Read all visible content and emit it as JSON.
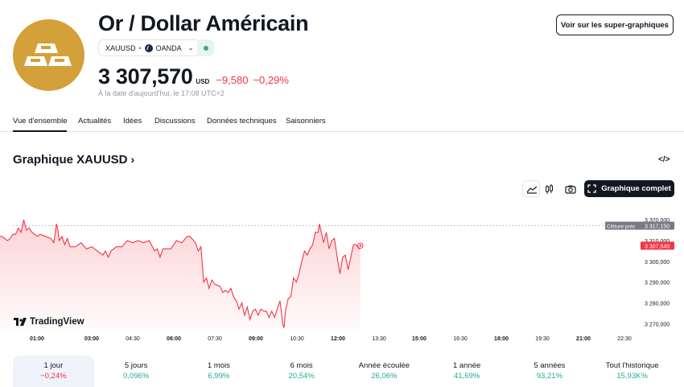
{
  "header": {
    "title": "Or / Dollar Américain",
    "symbol": "XAUUSD",
    "exchange": "OANDA",
    "price": "3 307,570",
    "currency": "USD",
    "change": "−9,580",
    "change_pct": "−0,29%",
    "date_text": "À la date d'aujourd'hui, le 17:08 UTC+2",
    "super_button": "Voir sur les super-graphiques",
    "logo_icon": "gold-bars-icon",
    "accent_color": "#d4a03a"
  },
  "tabs": [
    {
      "label": "Vue d'ensemble",
      "active": true
    },
    {
      "label": "Actualités",
      "active": false
    },
    {
      "label": "Idées",
      "active": false
    },
    {
      "label": "Discussions",
      "active": false
    },
    {
      "label": "Données techniques",
      "active": false
    },
    {
      "label": "Saisonniers",
      "active": false
    }
  ],
  "chart_section": {
    "title": "Graphique XAUUSD",
    "full_chart_button": "Graphique complet",
    "brand": "TradingView"
  },
  "chart_data": {
    "type": "area",
    "line_color": "#f23645",
    "x_ticks": [
      "01:00",
      "03:00",
      "04:30",
      "06:00",
      "07:30",
      "09:00",
      "10:30",
      "12:00",
      "13:30",
      "15:00",
      "16:30",
      "18:00",
      "19:30",
      "21:00",
      "22:30"
    ],
    "y_ticks": [
      "3 320,000",
      "3 310,000",
      "3 300,000",
      "3 290,000",
      "3 280,000",
      "3 270,000"
    ],
    "ylim": [
      3267,
      3322
    ],
    "prev_close": {
      "label": "Clôture préc",
      "value": "3 317,150",
      "num": 3317.15
    },
    "last": {
      "value": "3 307,540",
      "num": 3307.54
    },
    "points": [
      [
        0.0,
        3316
      ],
      [
        0.1,
        3314
      ],
      [
        0.2,
        3313
      ],
      [
        0.3,
        3312
      ],
      [
        0.4,
        3314
      ],
      [
        0.5,
        3312
      ],
      [
        0.6,
        3312
      ],
      [
        0.7,
        3311
      ],
      [
        0.8,
        3310
      ],
      [
        0.9,
        3311
      ],
      [
        1.0,
        3313
      ],
      [
        1.1,
        3313
      ],
      [
        1.2,
        3316
      ],
      [
        1.3,
        3314
      ],
      [
        1.4,
        3320
      ],
      [
        1.5,
        3315
      ],
      [
        1.6,
        3316
      ],
      [
        1.7,
        3314
      ],
      [
        1.8,
        3313
      ],
      [
        1.9,
        3312
      ],
      [
        2.0,
        3313
      ],
      [
        2.2,
        3312
      ],
      [
        2.4,
        3311
      ],
      [
        2.5,
        3309
      ],
      [
        2.6,
        3318
      ],
      [
        2.65,
        3315
      ],
      [
        2.7,
        3310
      ],
      [
        2.8,
        3312
      ],
      [
        2.9,
        3308
      ],
      [
        3.0,
        3311
      ],
      [
        3.1,
        3307
      ],
      [
        3.3,
        3307
      ],
      [
        3.5,
        3309
      ],
      [
        3.7,
        3306
      ],
      [
        3.9,
        3307
      ],
      [
        4.1,
        3305
      ],
      [
        4.3,
        3303
      ],
      [
        4.4,
        3305
      ],
      [
        4.5,
        3302
      ],
      [
        4.6,
        3305
      ],
      [
        4.8,
        3307
      ],
      [
        5.0,
        3307
      ],
      [
        5.2,
        3310
      ],
      [
        5.4,
        3309
      ],
      [
        5.6,
        3310
      ],
      [
        5.8,
        3309
      ],
      [
        6.0,
        3310
      ],
      [
        6.2,
        3305
      ],
      [
        6.3,
        3306
      ],
      [
        6.4,
        3302
      ],
      [
        6.5,
        3306
      ],
      [
        6.6,
        3306
      ],
      [
        6.8,
        3306
      ],
      [
        7.0,
        3310
      ],
      [
        7.2,
        3309
      ],
      [
        7.4,
        3312
      ],
      [
        7.5,
        3312
      ],
      [
        7.7,
        3309
      ],
      [
        7.8,
        3305
      ],
      [
        7.9,
        3307
      ],
      [
        8.0,
        3290
      ],
      [
        8.1,
        3292
      ],
      [
        8.2,
        3287
      ],
      [
        8.3,
        3291
      ],
      [
        8.4,
        3289
      ],
      [
        8.6,
        3288
      ],
      [
        8.7,
        3285
      ],
      [
        8.8,
        3286
      ],
      [
        8.9,
        3285
      ],
      [
        9.0,
        3287
      ],
      [
        9.1,
        3283
      ],
      [
        9.2,
        3281
      ],
      [
        9.3,
        3277
      ],
      [
        9.4,
        3280
      ],
      [
        9.5,
        3274
      ],
      [
        9.6,
        3278
      ],
      [
        9.7,
        3272
      ],
      [
        9.8,
        3276
      ],
      [
        9.9,
        3277
      ],
      [
        10.0,
        3274
      ],
      [
        10.1,
        3277
      ],
      [
        10.2,
        3276
      ],
      [
        10.3,
        3276
      ],
      [
        10.4,
        3273
      ],
      [
        10.5,
        3276
      ],
      [
        10.6,
        3273
      ],
      [
        10.7,
        3277
      ],
      [
        10.8,
        3281
      ],
      [
        10.85,
        3276
      ],
      [
        10.9,
        3270
      ],
      [
        10.95,
        3268
      ],
      [
        11.0,
        3276
      ],
      [
        11.1,
        3282
      ],
      [
        11.2,
        3283
      ],
      [
        11.3,
        3292
      ],
      [
        11.4,
        3290
      ],
      [
        11.5,
        3294
      ],
      [
        11.6,
        3300
      ],
      [
        11.7,
        3305
      ],
      [
        11.8,
        3303
      ],
      [
        11.9,
        3306
      ],
      [
        12.0,
        3308
      ],
      [
        12.1,
        3314
      ],
      [
        12.2,
        3314
      ],
      [
        12.25,
        3318
      ],
      [
        12.3,
        3315
      ],
      [
        12.4,
        3309
      ],
      [
        12.5,
        3314
      ],
      [
        12.6,
        3306
      ],
      [
        12.7,
        3310
      ],
      [
        12.8,
        3311
      ],
      [
        12.9,
        3302
      ],
      [
        13.0,
        3294
      ],
      [
        13.1,
        3302
      ],
      [
        13.2,
        3303
      ],
      [
        13.3,
        3296
      ],
      [
        13.4,
        3302
      ],
      [
        13.5,
        3308
      ],
      [
        13.6,
        3308
      ],
      [
        13.7,
        3306
      ],
      [
        13.75,
        3307.54
      ]
    ]
  },
  "periods": [
    {
      "label": "1 jour",
      "value": "−0,24%",
      "positive": false,
      "active": true
    },
    {
      "label": "5 jours",
      "value": "0,096%",
      "positive": true,
      "active": false
    },
    {
      "label": "1 mois",
      "value": "6,99%",
      "positive": true,
      "active": false
    },
    {
      "label": "6 mois",
      "value": "20,54%",
      "positive": true,
      "active": false
    },
    {
      "label": "Année écoulée",
      "value": "26,06%",
      "positive": true,
      "active": false
    },
    {
      "label": "1 année",
      "value": "41,69%",
      "positive": true,
      "active": false
    },
    {
      "label": "5 années",
      "value": "93,21%",
      "positive": true,
      "active": false
    },
    {
      "label": "Tout l'historique",
      "value": "15,93K%",
      "positive": true,
      "active": false
    }
  ]
}
